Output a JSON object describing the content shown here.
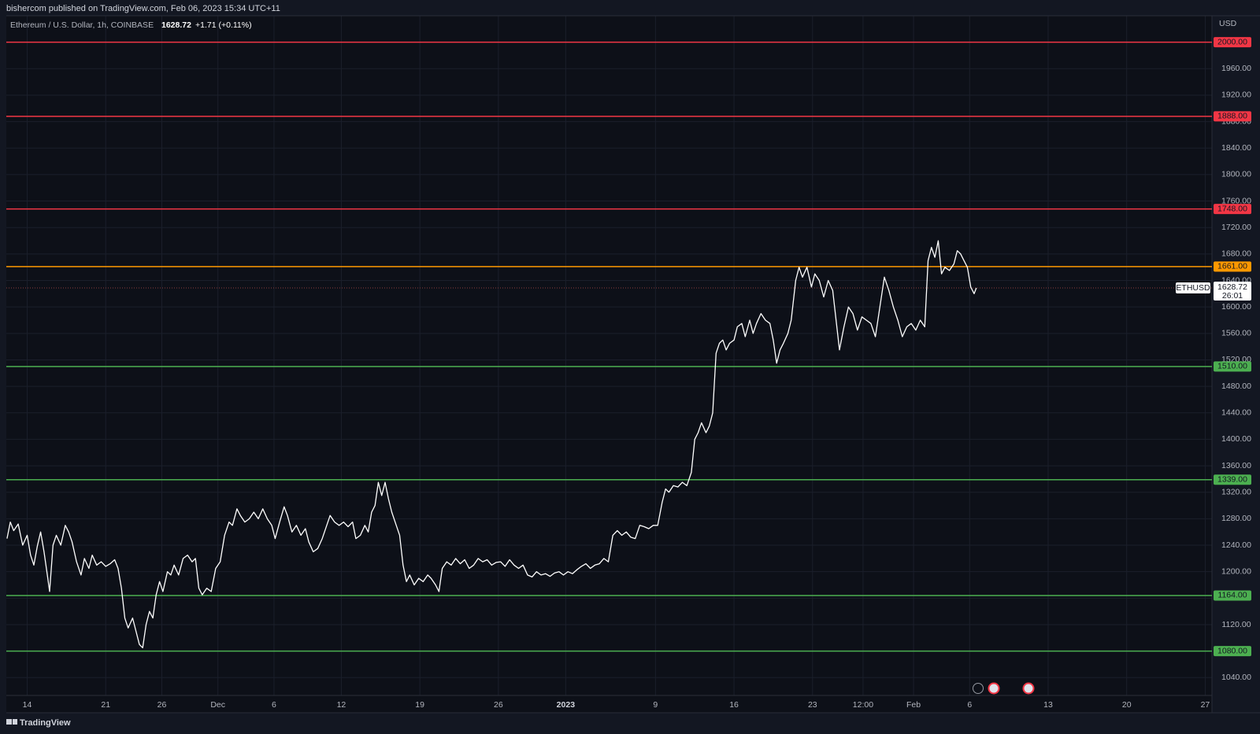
{
  "chart_data": {
    "type": "line",
    "publisher_note": "bishercom published on TradingView.com, Feb 06, 2023 15:34 UTC+11",
    "symbol": "Ethereum / U.S. Dollar, 1h, COINBASE",
    "last_price": 1628.72,
    "change": "+1.71 (+0.11%)",
    "currency": "USD",
    "symbol_tag": "ETHUSD",
    "countdown": "26:01",
    "brand": "TradingView",
    "color": "#ffffff",
    "grid": true,
    "xlim": [
      -1.86,
      105.6
    ],
    "ylim": [
      1013,
      2040
    ],
    "xticks": [
      {
        "value": 0,
        "label": "14"
      },
      {
        "value": 7,
        "label": "21"
      },
      {
        "value": 12,
        "label": "26"
      },
      {
        "value": 17,
        "label": "Dec"
      },
      {
        "value": 22,
        "label": "6"
      },
      {
        "value": 28,
        "label": "12"
      },
      {
        "value": 35,
        "label": "19"
      },
      {
        "value": 42,
        "label": "26"
      },
      {
        "value": 48,
        "label": "2023"
      },
      {
        "value": 56,
        "label": "9"
      },
      {
        "value": 63,
        "label": "16"
      },
      {
        "value": 70,
        "label": "23"
      },
      {
        "value": 74.5,
        "label": "12:00"
      },
      {
        "value": 79,
        "label": "Feb"
      },
      {
        "value": 84,
        "label": "6"
      },
      {
        "value": 91,
        "label": "13"
      },
      {
        "value": 98,
        "label": "20"
      },
      {
        "value": 105,
        "label": "27"
      }
    ],
    "yticks": [
      {
        "value": 1040,
        "label": "1040.00"
      },
      {
        "value": 1080,
        "label": "1080.00"
      },
      {
        "value": 1120,
        "label": "1120.00"
      },
      {
        "value": 1160,
        "label": "1160.00"
      },
      {
        "value": 1200,
        "label": "1200.00"
      },
      {
        "value": 1240,
        "label": "1240.00"
      },
      {
        "value": 1280,
        "label": "1280.00"
      },
      {
        "value": 1320,
        "label": "1320.00"
      },
      {
        "value": 1360,
        "label": "1360.00"
      },
      {
        "value": 1400,
        "label": "1400.00"
      },
      {
        "value": 1440,
        "label": "1440.00"
      },
      {
        "value": 1480,
        "label": "1480.00"
      },
      {
        "value": 1520,
        "label": "1520.00"
      },
      {
        "value": 1560,
        "label": "1560.00"
      },
      {
        "value": 1600,
        "label": "1600.00"
      },
      {
        "value": 1640,
        "label": "1640.00"
      },
      {
        "value": 1680,
        "label": "1680.00"
      },
      {
        "value": 1720,
        "label": "1720.00"
      },
      {
        "value": 1760,
        "label": "1760.00"
      },
      {
        "value": 1800,
        "label": "1800.00"
      },
      {
        "value": 1840,
        "label": "1840.00"
      },
      {
        "value": 1880,
        "label": "1880.00"
      },
      {
        "value": 1920,
        "label": "1920.00"
      },
      {
        "value": 1960,
        "label": "1960.00"
      }
    ],
    "levels": [
      {
        "value": 2000,
        "label": "2000.00",
        "color": "#f23645"
      },
      {
        "value": 1888,
        "label": "1888.00",
        "color": "#f23645"
      },
      {
        "value": 1748,
        "label": "1748.00",
        "color": "#f23645"
      },
      {
        "value": 1661,
        "label": "1661.00",
        "color": "#ff9800"
      },
      {
        "value": 1510,
        "label": "1510.00",
        "color": "#4caf50"
      },
      {
        "value": 1339,
        "label": "1339.00",
        "color": "#4caf50"
      },
      {
        "value": 1164,
        "label": "1164.00",
        "color": "#4caf50"
      },
      {
        "value": 1080,
        "label": "1080.00",
        "color": "#4caf50"
      }
    ],
    "x": [
      -1.8,
      -1.5,
      -1.2,
      -0.8,
      -0.4,
      0,
      0.3,
      0.6,
      0.9,
      1.2,
      1.5,
      1.8,
      2.0,
      2.3,
      2.6,
      3.0,
      3.4,
      3.7,
      4.0,
      4.4,
      4.8,
      5.1,
      5.5,
      5.8,
      6.2,
      6.6,
      7.0,
      7.4,
      7.8,
      8.1,
      8.4,
      8.7,
      9.0,
      9.4,
      9.7,
      10.0,
      10.3,
      10.6,
      10.9,
      11.2,
      11.5,
      11.8,
      12.1,
      12.5,
      12.8,
      13.1,
      13.5,
      13.9,
      14.3,
      14.7,
      15.0,
      15.3,
      15.6,
      16.0,
      16.4,
      16.8,
      17.2,
      17.6,
      18.0,
      18.3,
      18.7,
      19.0,
      19.4,
      19.8,
      20.2,
      20.6,
      21.0,
      21.4,
      21.8,
      22.1,
      22.5,
      22.9,
      23.2,
      23.6,
      24.0,
      24.4,
      24.8,
      25.1,
      25.5,
      25.9,
      26.3,
      26.7,
      27.0,
      27.4,
      27.8,
      28.2,
      28.6,
      29.0,
      29.3,
      29.7,
      30.1,
      30.4,
      30.7,
      31.0,
      31.3,
      31.6,
      31.9,
      32.2,
      32.5,
      32.9,
      33.2,
      33.5,
      33.8,
      34.1,
      34.5,
      34.9,
      35.3,
      35.7,
      36.0,
      36.4,
      36.7,
      37.0,
      37.4,
      37.8,
      38.2,
      38.6,
      39.0,
      39.4,
      39.8,
      40.2,
      40.6,
      41.0,
      41.4,
      41.8,
      42.2,
      42.6,
      43.0,
      43.4,
      43.8,
      44.2,
      44.6,
      45.0,
      45.4,
      45.8,
      46.2,
      46.6,
      47.0,
      47.4,
      47.8,
      48.2,
      48.6,
      49.0,
      49.4,
      49.8,
      50.2,
      50.6,
      51.0,
      51.4,
      51.8,
      52.2,
      52.6,
      53.0,
      53.4,
      53.8,
      54.2,
      54.6,
      55.0,
      55.4,
      55.8,
      56.2,
      56.6,
      56.9,
      57.2,
      57.6,
      58.0,
      58.4,
      58.8,
      59.2,
      59.5,
      59.8,
      60.1,
      60.5,
      60.8,
      61.1,
      61.4,
      61.7,
      62.0,
      62.3,
      62.6,
      63.0,
      63.3,
      63.7,
      64.0,
      64.4,
      64.7,
      65.0,
      65.4,
      65.8,
      66.2,
      66.5,
      66.8,
      67.1,
      67.4,
      67.8,
      68.1,
      68.5,
      68.8,
      69.1,
      69.5,
      69.9,
      70.2,
      70.6,
      71.0,
      71.4,
      71.8,
      72.1,
      72.4,
      72.8,
      73.2,
      73.6,
      74.0,
      74.4,
      74.8,
      75.2,
      75.6,
      76.0,
      76.4,
      76.8,
      77.2,
      77.6,
      78.0,
      78.4,
      78.8,
      79.2,
      79.6,
      80.0,
      80.3,
      80.6,
      80.9,
      81.2,
      81.5,
      81.8,
      82.2,
      82.6,
      82.9,
      83.2,
      83.5,
      83.8,
      84.1,
      84.4,
      84.6
    ],
    "values": [
      1250,
      1275,
      1262,
      1272,
      1240,
      1255,
      1225,
      1210,
      1238,
      1260,
      1230,
      1195,
      1170,
      1240,
      1255,
      1240,
      1270,
      1260,
      1245,
      1215,
      1195,
      1220,
      1205,
      1225,
      1210,
      1215,
      1208,
      1212,
      1218,
      1205,
      1175,
      1130,
      1115,
      1130,
      1110,
      1090,
      1085,
      1120,
      1140,
      1130,
      1165,
      1185,
      1170,
      1200,
      1195,
      1210,
      1195,
      1220,
      1225,
      1215,
      1220,
      1175,
      1165,
      1175,
      1170,
      1205,
      1215,
      1255,
      1275,
      1270,
      1295,
      1285,
      1275,
      1280,
      1290,
      1280,
      1295,
      1280,
      1270,
      1250,
      1275,
      1298,
      1285,
      1260,
      1270,
      1255,
      1265,
      1245,
      1230,
      1235,
      1250,
      1270,
      1285,
      1275,
      1270,
      1275,
      1268,
      1275,
      1250,
      1255,
      1270,
      1260,
      1290,
      1300,
      1335,
      1315,
      1335,
      1310,
      1290,
      1270,
      1255,
      1210,
      1185,
      1195,
      1180,
      1190,
      1185,
      1195,
      1190,
      1180,
      1170,
      1205,
      1215,
      1210,
      1220,
      1212,
      1218,
      1205,
      1210,
      1220,
      1215,
      1218,
      1210,
      1214,
      1215,
      1208,
      1218,
      1210,
      1205,
      1210,
      1195,
      1192,
      1200,
      1195,
      1197,
      1193,
      1198,
      1200,
      1195,
      1200,
      1197,
      1203,
      1208,
      1212,
      1205,
      1210,
      1212,
      1220,
      1215,
      1255,
      1262,
      1255,
      1260,
      1252,
      1250,
      1270,
      1268,
      1265,
      1270,
      1270,
      1305,
      1325,
      1320,
      1330,
      1328,
      1335,
      1330,
      1350,
      1400,
      1410,
      1425,
      1410,
      1420,
      1440,
      1530,
      1545,
      1550,
      1535,
      1545,
      1550,
      1570,
      1575,
      1555,
      1580,
      1560,
      1575,
      1590,
      1580,
      1575,
      1550,
      1515,
      1535,
      1545,
      1560,
      1580,
      1640,
      1660,
      1645,
      1660,
      1630,
      1650,
      1640,
      1615,
      1640,
      1625,
      1580,
      1535,
      1570,
      1600,
      1590,
      1565,
      1585,
      1580,
      1575,
      1555,
      1600,
      1645,
      1625,
      1600,
      1580,
      1555,
      1570,
      1575,
      1565,
      1580,
      1570,
      1670,
      1690,
      1675,
      1700,
      1650,
      1660,
      1655,
      1665,
      1685,
      1680,
      1670,
      1660,
      1630,
      1620,
      1628.72
    ]
  }
}
